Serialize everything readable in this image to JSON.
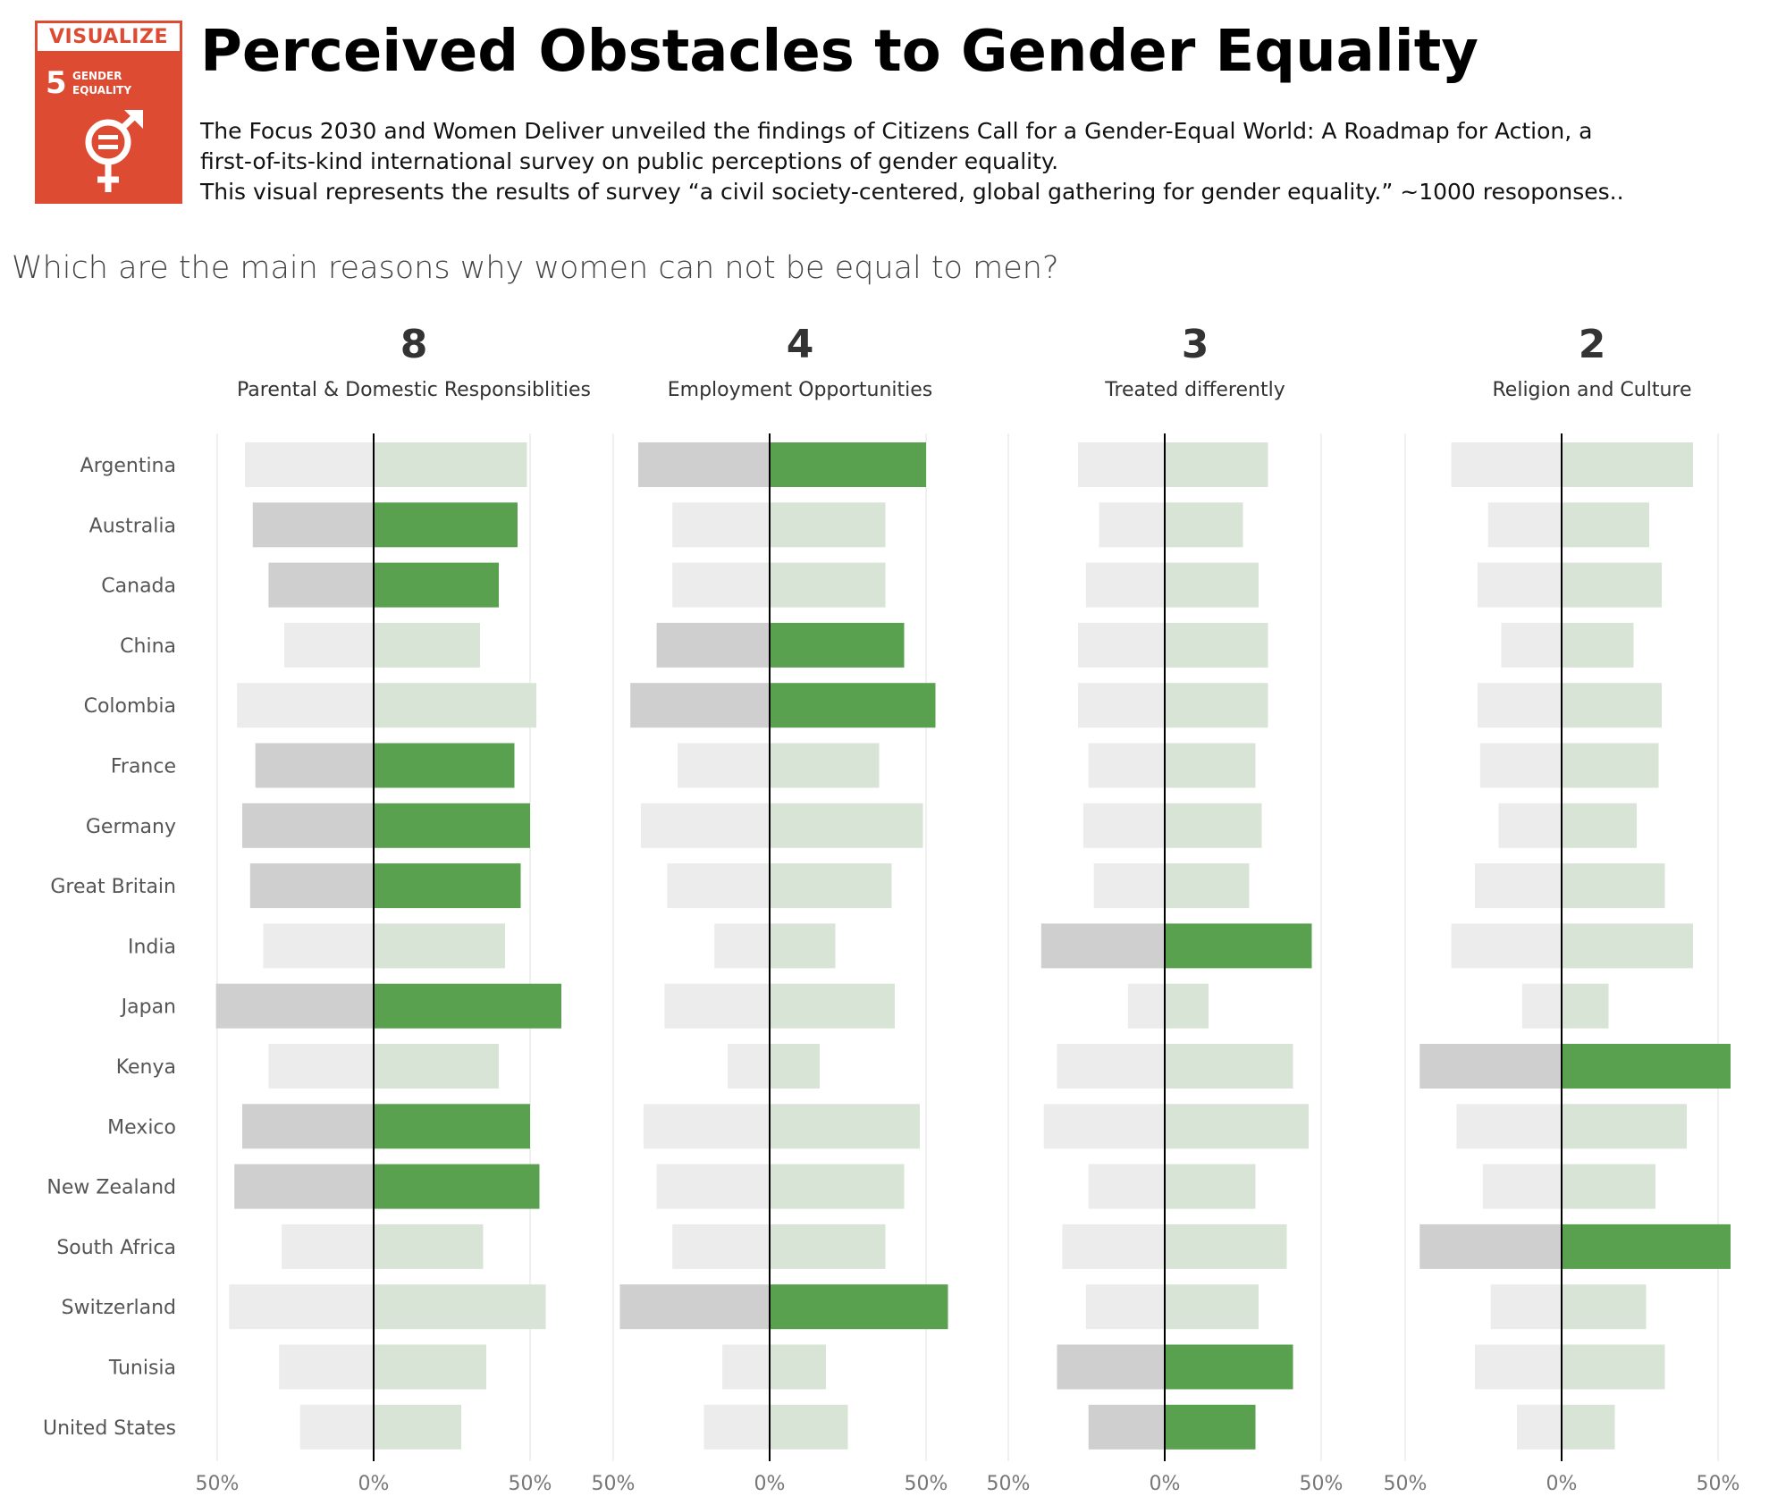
{
  "logo": {
    "header": "VISUALIZE",
    "goal_number": "5",
    "goal_name_line1": "GENDER",
    "goal_name_line2": "EQUALITY",
    "icon": "gender-equality-symbol-icon"
  },
  "header": {
    "title": "Perceived Obstacles to Gender Equality",
    "desc_line1": "The Focus 2030 and Women Deliver unveiled the findings of Citizens Call for a Gender-Equal World: A Roadmap for Action, a",
    "desc_line2": "first-of-its-kind international survey on public perceptions of gender equality.",
    "desc_line3": "This visual represents the results of survey “a civil society-centered, global gathering for gender equality.” ~1000 resoponses.."
  },
  "question": "Which are the main reasons why women can not be equal to men?",
  "colors": {
    "highlight_right": "#59a14f",
    "highlight_left": "#cfcfcf",
    "faded_right": "#d8e4d6",
    "faded_left": "#ececec",
    "axis": "#000000",
    "grid": "#ececec",
    "text_country": "#555555",
    "text_tick": "#777777",
    "text_count": "#333333"
  },
  "chart_data": {
    "type": "bar",
    "layout": "diverging small multiples",
    "countries": [
      "Argentina",
      "Australia",
      "Canada",
      "China",
      "Colombia",
      "France",
      "Germany",
      "Great Britain",
      "India",
      "Japan",
      "Kenya",
      "Mexico",
      "New Zealand",
      "South Africa",
      "Switzerland",
      "Tunisia",
      "United States"
    ],
    "x_ticks": [
      "50%",
      "0%",
      "50%"
    ],
    "xlim": [
      -50,
      50
    ],
    "panels": [
      {
        "count": "8",
        "title": "Parental & Domestic Responsiblities",
        "values": [
          49,
          46,
          40,
          34,
          52,
          45,
          50,
          47,
          42,
          60,
          40,
          50,
          53,
          35,
          55,
          36,
          28
        ],
        "highlighted": [
          false,
          true,
          true,
          false,
          false,
          true,
          true,
          true,
          false,
          true,
          false,
          true,
          true,
          false,
          false,
          false,
          false
        ]
      },
      {
        "count": "4",
        "title": "Employment Opportunities",
        "values": [
          50,
          37,
          37,
          43,
          53,
          35,
          49,
          39,
          21,
          40,
          16,
          48,
          43,
          37,
          57,
          18,
          25
        ],
        "highlighted": [
          true,
          false,
          false,
          true,
          true,
          false,
          false,
          false,
          false,
          false,
          false,
          false,
          false,
          false,
          true,
          false,
          false
        ]
      },
      {
        "count": "3",
        "title": "Treated differently",
        "values": [
          33,
          25,
          30,
          33,
          33,
          29,
          31,
          27,
          47,
          14,
          41,
          46,
          29,
          39,
          30,
          41,
          29
        ],
        "highlighted": [
          false,
          false,
          false,
          false,
          false,
          false,
          false,
          false,
          true,
          false,
          false,
          false,
          false,
          false,
          false,
          true,
          true
        ]
      },
      {
        "count": "2",
        "title": "Religion and Culture",
        "values": [
          42,
          28,
          32,
          23,
          32,
          31,
          24,
          33,
          42,
          15,
          54,
          40,
          30,
          54,
          27,
          33,
          17
        ],
        "highlighted": [
          false,
          false,
          false,
          false,
          false,
          false,
          false,
          false,
          false,
          false,
          true,
          false,
          false,
          true,
          false,
          false,
          false
        ]
      }
    ]
  }
}
